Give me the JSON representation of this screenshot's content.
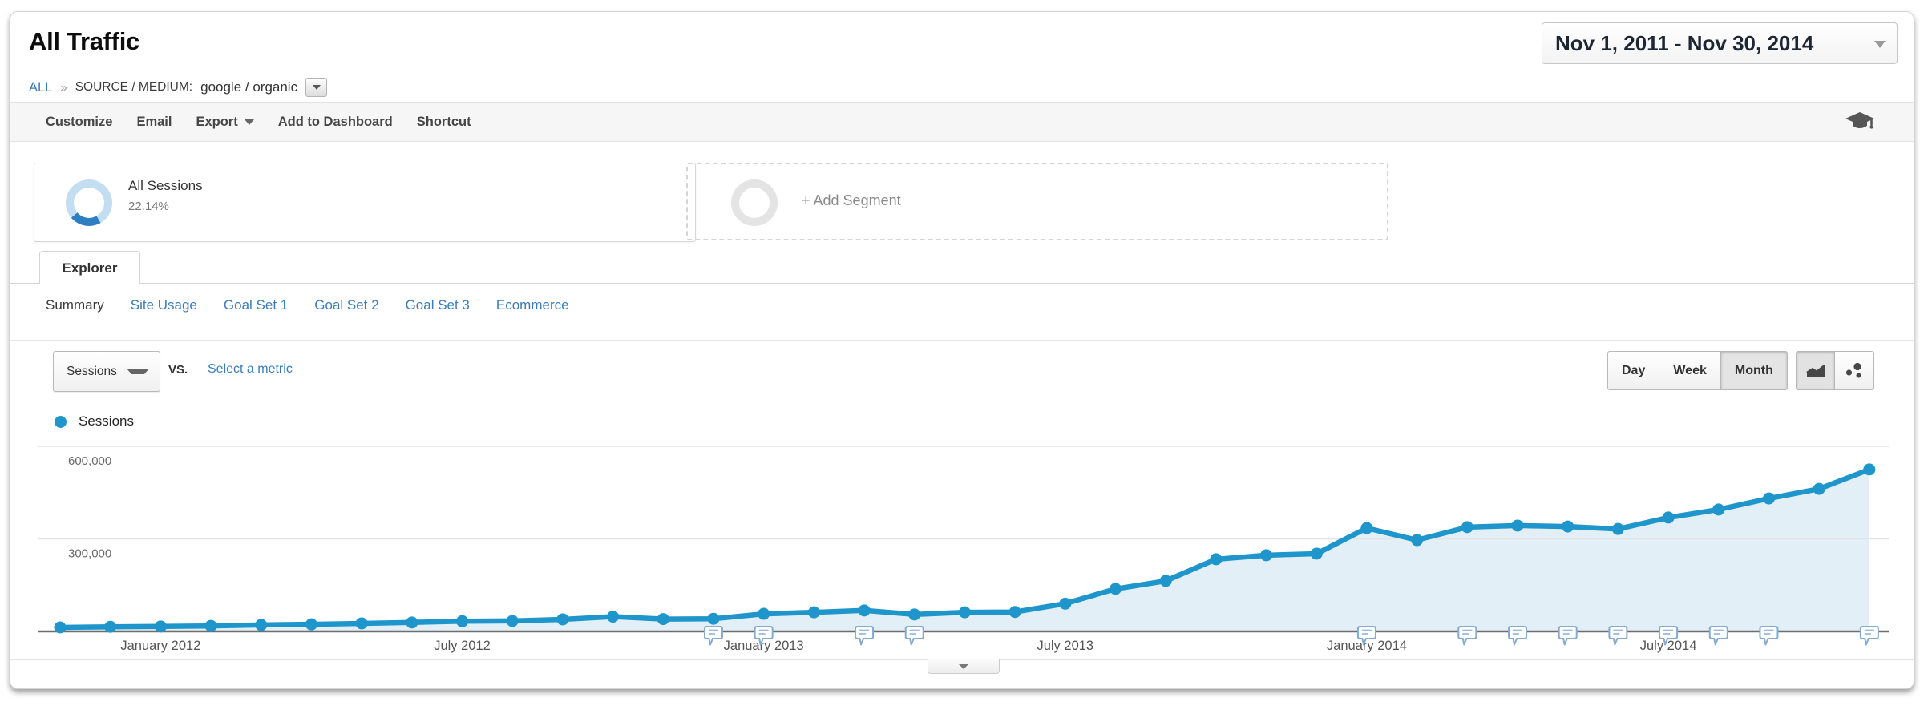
{
  "header": {
    "title": "All Traffic",
    "date_range": "Nov 1, 2011 - Nov 30, 2014"
  },
  "breadcrumb": {
    "all": "ALL",
    "separator": "»",
    "dimension": "SOURCE / MEDIUM:",
    "value": "google / organic"
  },
  "toolbar": {
    "items": [
      "Customize",
      "Email",
      "Export",
      "Add to Dashboard",
      "Shortcut"
    ]
  },
  "segments": {
    "all_sessions": {
      "label": "All Sessions",
      "percent": "22.14%"
    },
    "add_segment": {
      "label": "+ Add Segment"
    }
  },
  "explorer": {
    "tab": "Explorer",
    "subtabs": [
      "Summary",
      "Site Usage",
      "Goal Set 1",
      "Goal Set 2",
      "Goal Set 3",
      "Ecommerce"
    ],
    "active_subtab": "Summary"
  },
  "controls": {
    "metric_button": "Sessions",
    "vs": "vs.",
    "select_metric": "Select a metric",
    "granularity": [
      "Day",
      "Week",
      "Month"
    ],
    "active_granularity": "Month"
  },
  "legend": {
    "label": "Sessions"
  },
  "colors": {
    "line_blue": "#1e96cb",
    "area_fill": "#e3eff7",
    "link_blue": "#3b7cb8",
    "annotation_border": "#84abd0"
  },
  "chart_data": {
    "type": "line",
    "title": "Sessions over time (monthly)",
    "legend": "Sessions",
    "grid": "horizontal",
    "ylim": [
      0,
      650000
    ],
    "x": [
      "Nov 2011",
      "Dec 2011",
      "Jan 2012",
      "Feb 2012",
      "Mar 2012",
      "Apr 2012",
      "May 2012",
      "Jun 2012",
      "Jul 2012",
      "Aug 2012",
      "Sep 2012",
      "Oct 2012",
      "Nov 2012",
      "Dec 2012",
      "Jan 2013",
      "Feb 2013",
      "Mar 2013",
      "Apr 2013",
      "May 2013",
      "Jun 2013",
      "Jul 2013",
      "Aug 2013",
      "Sep 2013",
      "Oct 2013",
      "Nov 2013",
      "Dec 2013",
      "Jan 2014",
      "Feb 2014",
      "Mar 2014",
      "Apr 2014",
      "May 2014",
      "Jun 2014",
      "Jul 2014",
      "Aug 2014",
      "Sep 2014",
      "Oct 2014",
      "Nov 2014"
    ],
    "series": [
      {
        "name": "Sessions",
        "values": [
          13000,
          15000,
          16000,
          18000,
          21000,
          23000,
          26000,
          29000,
          33000,
          34000,
          39000,
          48000,
          40000,
          41000,
          57000,
          62000,
          68000,
          55000,
          62000,
          63000,
          90000,
          138000,
          164000,
          234000,
          247000,
          252000,
          335000,
          296000,
          338000,
          343000,
          340000,
          332000,
          369000,
          395000,
          431000,
          462000,
          525000
        ]
      }
    ],
    "yticks": [
      {
        "value": 600000,
        "label": "600,000"
      },
      {
        "value": 300000,
        "label": "300,000"
      }
    ],
    "xticks": [
      {
        "index": 2,
        "label": "January 2012"
      },
      {
        "index": 8,
        "label": "July 2012"
      },
      {
        "index": 14,
        "label": "January 2013"
      },
      {
        "index": 20,
        "label": "July 2013"
      },
      {
        "index": 26,
        "label": "January 2014"
      },
      {
        "index": 32,
        "label": "July 2014"
      }
    ],
    "annotation_indices": [
      13,
      14,
      16,
      17,
      26,
      28,
      29,
      30,
      31,
      32,
      33,
      34,
      36
    ],
    "annotation_months": [
      "Dec 2012",
      "Jan 2013",
      "Mar 2013",
      "Apr 2013",
      "Jan 2014",
      "Mar 2014",
      "Apr 2014",
      "May 2014",
      "Jun 2014",
      "Jul 2014",
      "Aug 2014",
      "Sep 2014",
      "Nov 2014"
    ],
    "line_color": "#1e96cb",
    "fill_color": "#e3eff7"
  }
}
